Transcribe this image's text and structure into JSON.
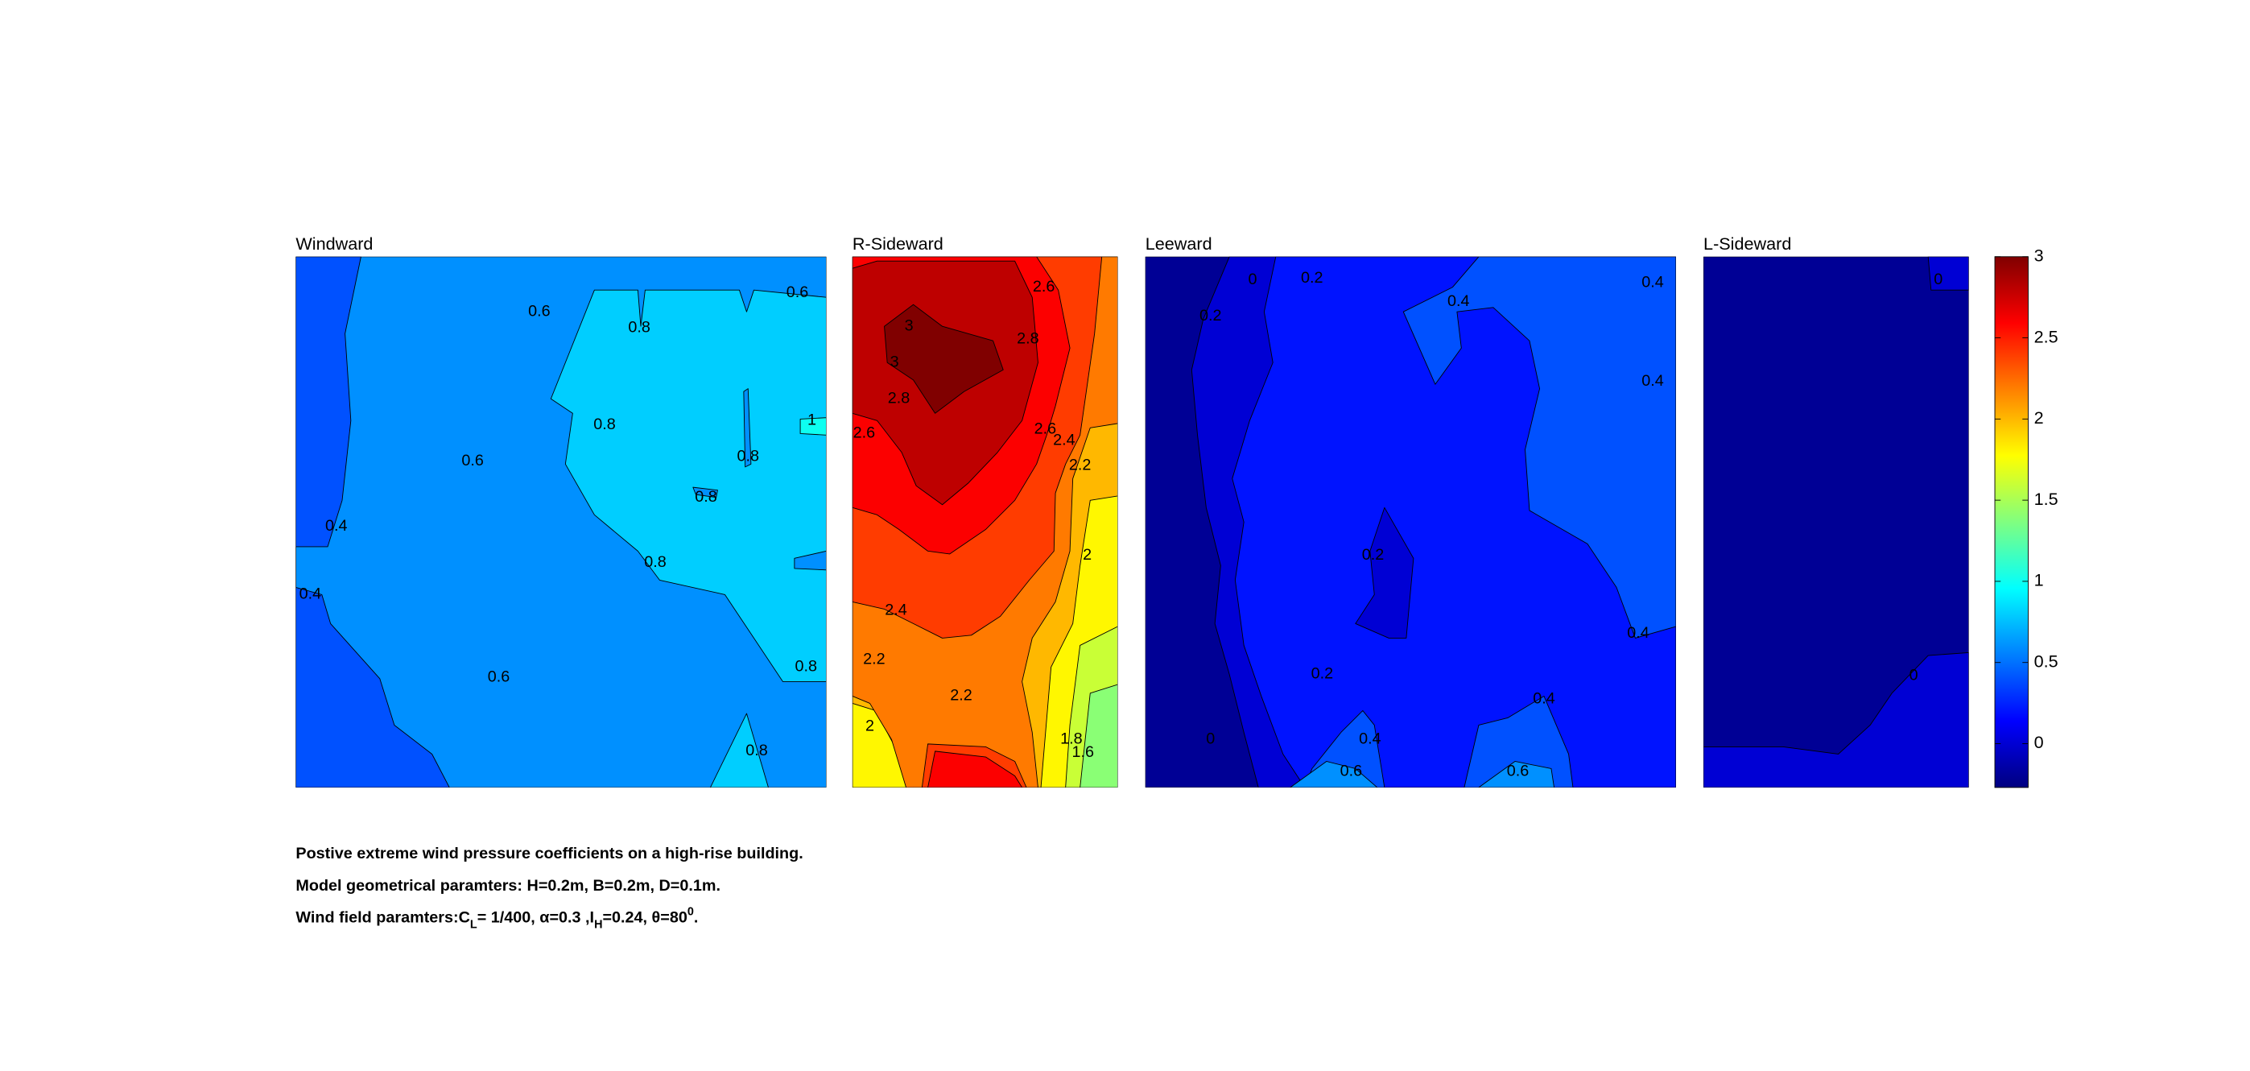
{
  "chart_data": [
    {
      "type": "contour",
      "title": "Windward",
      "regions": [
        0.6,
        0.4,
        0.8,
        0.8,
        0.6,
        0.6,
        1
      ],
      "contour_labels": [
        0.6,
        0.8,
        0.6,
        0.8,
        1,
        0.6,
        0.8,
        0.8,
        0.4,
        0.8,
        0.4,
        0.6,
        0.8,
        0.8
      ]
    },
    {
      "type": "contour",
      "title": "R-Sideward",
      "regions": [
        1.4,
        1.6,
        1.8,
        2,
        2.2,
        2.4,
        2.4,
        2.6,
        2.6,
        2.8,
        3
      ],
      "contour_labels": [
        3,
        3,
        2.8,
        2.6,
        2.8,
        2.6,
        2.6,
        2.4,
        2.2,
        2,
        2.4,
        2.2,
        2.2,
        2,
        1.8,
        1.6
      ]
    },
    {
      "type": "contour",
      "title": "Leeward",
      "regions": [
        -0.2,
        0,
        0.2,
        0,
        0.4,
        0.4,
        0.4,
        0.6,
        0.6
      ],
      "contour_labels": [
        0,
        0.2,
        0.2,
        0.4,
        0.4,
        0.4,
        0.2,
        0.4,
        0.2,
        0.4,
        0,
        0.4,
        0.6,
        0.6
      ]
    },
    {
      "type": "contour",
      "title": "L-Sideward",
      "regions": [
        -0.2,
        0,
        0
      ],
      "contour_labels": [
        0,
        0
      ]
    },
    {
      "type": "colorbar",
      "colormap": "jet",
      "ylim": [
        -0.27,
        3
      ],
      "yticks": [
        0,
        0.5,
        1,
        1.5,
        2,
        2.5,
        3
      ]
    }
  ],
  "notes": [
    "Postive extreme  wind pressure coefficients on a high-rise building.",
    "Model geometrical paramters: H=0.2m, B=0.2m, D=0.1m.",
    [
      "Wind field paramters:C",
      "L",
      "= 1/400, α=0.3 ,I",
      "H",
      "=0.24, θ=80",
      "0",
      "."
    ]
  ]
}
